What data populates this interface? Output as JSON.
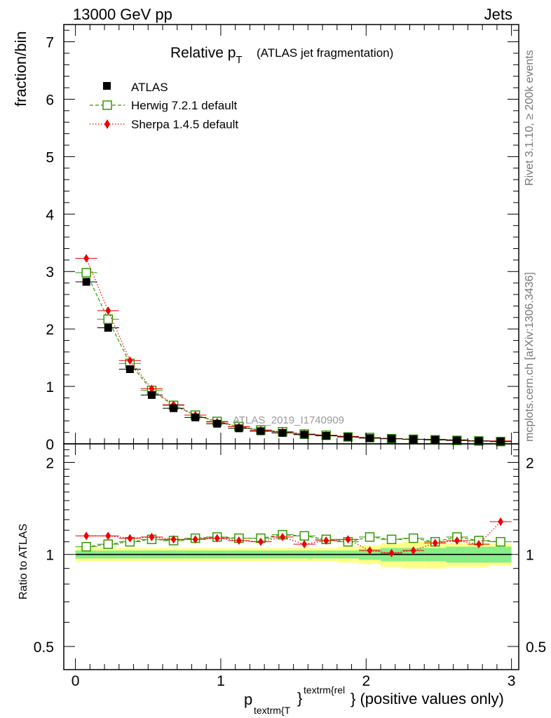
{
  "header": {
    "left": "13000 GeV pp",
    "right": "Jets"
  },
  "side_text": {
    "top": "Rivet 3.1.10, ≥ 200k events",
    "bottom": "mcplots.cern.ch [arXiv:1306.3436]"
  },
  "watermark": "ATLAS_2019_I1740909",
  "colors": {
    "data": "#000000",
    "herwig": "#339900",
    "sherpa": "#ee0000",
    "band_inner": "#88ee88",
    "band_outer": "#ffff88"
  },
  "chart_data": [
    {
      "type": "scatter",
      "panel": "main",
      "title": "Relative p",
      "title_sub": "T",
      "title_suffix": "(ATLAS jet fragmentation)",
      "ylabel": "fraction/bin",
      "xlim": [
        -0.08,
        3.05
      ],
      "ylim": [
        0,
        7.3
      ],
      "yticks": [
        "0",
        "1",
        "2",
        "3",
        "4",
        "5",
        "6",
        "7"
      ],
      "x": [
        0.075,
        0.225,
        0.375,
        0.525,
        0.675,
        0.825,
        0.975,
        1.125,
        1.275,
        1.425,
        1.575,
        1.725,
        1.875,
        2.025,
        2.175,
        2.325,
        2.475,
        2.625,
        2.775,
        2.925
      ],
      "series": [
        {
          "name": "ATLAS",
          "key": "data",
          "marker": "filled-square",
          "values": [
            2.82,
            2.02,
            1.3,
            0.85,
            0.62,
            0.46,
            0.35,
            0.27,
            0.22,
            0.19,
            0.16,
            0.14,
            0.12,
            0.1,
            0.09,
            0.08,
            0.07,
            0.06,
            0.05,
            0.04
          ]
        },
        {
          "name": "Herwig 7.2.1 default",
          "key": "herwig",
          "marker": "open-square",
          "line": "dashed",
          "values": [
            2.98,
            2.17,
            1.4,
            0.93,
            0.67,
            0.5,
            0.39,
            0.3,
            0.24,
            0.21,
            0.17,
            0.15,
            0.12,
            0.11,
            0.09,
            0.08,
            0.07,
            0.06,
            0.05,
            0.04
          ]
        },
        {
          "name": "Sherpa 1.4.5 default",
          "key": "sherpa",
          "marker": "filled-diamond",
          "line": "dotted",
          "values": [
            3.23,
            2.32,
            1.45,
            0.96,
            0.68,
            0.5,
            0.38,
            0.3,
            0.24,
            0.21,
            0.17,
            0.15,
            0.13,
            0.1,
            0.09,
            0.08,
            0.08,
            0.07,
            0.05,
            0.05
          ]
        }
      ]
    },
    {
      "type": "scatter",
      "panel": "ratio",
      "ylabel": "Ratio to ATLAS",
      "xlabel_main": "p",
      "xlabel_sub": "textrm{T",
      "xlabel_sup": "textrm{rel",
      "xlabel_suffix": "} (positive values only)",
      "brace_1": "}",
      "xlim": [
        -0.08,
        3.05
      ],
      "ylim": [
        0.42,
        2.3
      ],
      "yticks": [
        "0.5",
        "1",
        "2"
      ],
      "yticks_right": [
        "0.5",
        "1",
        "2"
      ],
      "xticks": [
        "0",
        "1",
        "2",
        "3"
      ],
      "band_inner": [
        0.03,
        0.03,
        0.03,
        0.03,
        0.03,
        0.03,
        0.03,
        0.03,
        0.03,
        0.03,
        0.03,
        0.03,
        0.03,
        0.04,
        0.05,
        0.05,
        0.05,
        0.06,
        0.06,
        0.06
      ],
      "band_outer": [
        0.05,
        0.05,
        0.05,
        0.05,
        0.05,
        0.05,
        0.05,
        0.05,
        0.05,
        0.05,
        0.05,
        0.05,
        0.06,
        0.07,
        0.09,
        0.1,
        0.1,
        0.09,
        0.09,
        0.08
      ],
      "series": [
        {
          "name": "Herwig 7.2.1 default",
          "key": "herwig",
          "values": [
            1.06,
            1.08,
            1.1,
            1.12,
            1.11,
            1.13,
            1.14,
            1.13,
            1.13,
            1.16,
            1.15,
            1.12,
            1.1,
            1.14,
            1.12,
            1.13,
            1.1,
            1.14,
            1.11,
            1.1
          ]
        },
        {
          "name": "Sherpa 1.4.5 default",
          "key": "sherpa",
          "values": [
            1.15,
            1.15,
            1.13,
            1.14,
            1.12,
            1.12,
            1.13,
            1.11,
            1.1,
            1.14,
            1.08,
            1.11,
            1.12,
            1.03,
            1.01,
            1.03,
            1.09,
            1.11,
            1.08,
            1.28
          ],
          "errors": [
            0.01,
            0.01,
            0.01,
            0.01,
            0.01,
            0.01,
            0.01,
            0.01,
            0.01,
            0.02,
            0.02,
            0.02,
            0.02,
            0.02,
            0.02,
            0.02,
            0.03,
            0.03,
            0.03,
            0.04
          ]
        }
      ]
    }
  ]
}
